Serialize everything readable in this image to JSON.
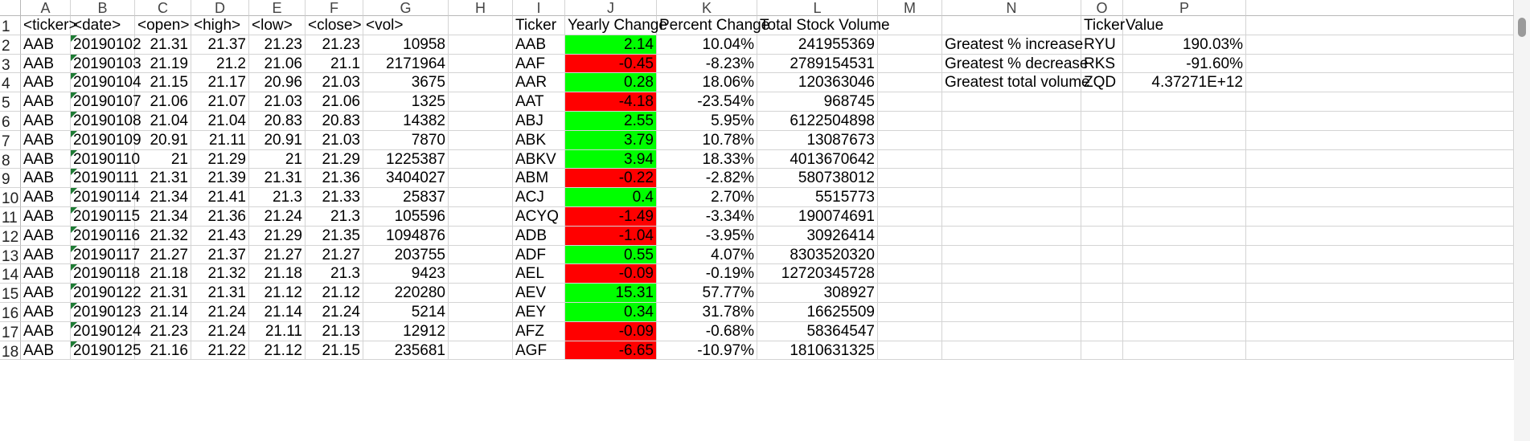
{
  "colors": {
    "positive": "#00ff00",
    "negative": "#ff0000",
    "error_indicator": "#1e7b34"
  },
  "column_headers": [
    "A",
    "B",
    "C",
    "D",
    "E",
    "F",
    "G",
    "H",
    "I",
    "J",
    "K",
    "L",
    "M",
    "N",
    "O",
    "P",
    ""
  ],
  "row_numbers": [
    "1",
    "2",
    "3",
    "4",
    "5",
    "6",
    "7",
    "8",
    "9",
    "10",
    "11",
    "12",
    "13",
    "14",
    "15",
    "16",
    "17",
    "18"
  ],
  "raw_headers": [
    "<ticker>",
    "<date>",
    "<open>",
    "<high>",
    "<low>",
    "<close>",
    "<vol>"
  ],
  "raw_rows": [
    [
      "AAB",
      "20190102",
      "21.31",
      "21.37",
      "21.23",
      "21.23",
      "10958"
    ],
    [
      "AAB",
      "20190103",
      "21.19",
      "21.2",
      "21.06",
      "21.1",
      "2171964"
    ],
    [
      "AAB",
      "20190104",
      "21.15",
      "21.17",
      "20.96",
      "21.03",
      "3675"
    ],
    [
      "AAB",
      "20190107",
      "21.06",
      "21.07",
      "21.03",
      "21.06",
      "1325"
    ],
    [
      "AAB",
      "20190108",
      "21.04",
      "21.04",
      "20.83",
      "20.83",
      "14382"
    ],
    [
      "AAB",
      "20190109",
      "20.91",
      "21.11",
      "20.91",
      "21.03",
      "7870"
    ],
    [
      "AAB",
      "20190110",
      "21",
      "21.29",
      "21",
      "21.29",
      "1225387"
    ],
    [
      "AAB",
      "20190111",
      "21.31",
      "21.39",
      "21.31",
      "21.36",
      "3404027"
    ],
    [
      "AAB",
      "20190114",
      "21.34",
      "21.41",
      "21.3",
      "21.33",
      "25837"
    ],
    [
      "AAB",
      "20190115",
      "21.34",
      "21.36",
      "21.24",
      "21.3",
      "105596"
    ],
    [
      "AAB",
      "20190116",
      "21.32",
      "21.43",
      "21.29",
      "21.35",
      "1094876"
    ],
    [
      "AAB",
      "20190117",
      "21.27",
      "21.37",
      "21.27",
      "21.27",
      "203755"
    ],
    [
      "AAB",
      "20190118",
      "21.18",
      "21.32",
      "21.18",
      "21.3",
      "9423"
    ],
    [
      "AAB",
      "20190122",
      "21.31",
      "21.31",
      "21.12",
      "21.12",
      "220280"
    ],
    [
      "AAB",
      "20190123",
      "21.14",
      "21.24",
      "21.14",
      "21.24",
      "5214"
    ],
    [
      "AAB",
      "20190124",
      "21.23",
      "21.24",
      "21.11",
      "21.13",
      "12912"
    ],
    [
      "AAB",
      "20190125",
      "21.16",
      "21.22",
      "21.12",
      "21.15",
      "235681"
    ]
  ],
  "summary_headers": [
    "Ticker",
    "Yearly Change",
    "Percent Change",
    "Total Stock Volume"
  ],
  "summary_rows": [
    [
      "AAB",
      "2.14",
      "10.04%",
      "241955369"
    ],
    [
      "AAF",
      "-0.45",
      "-8.23%",
      "2789154531"
    ],
    [
      "AAR",
      "0.28",
      "18.06%",
      "120363046"
    ],
    [
      "AAT",
      "-4.18",
      "-23.54%",
      "968745"
    ],
    [
      "ABJ",
      "2.55",
      "5.95%",
      "6122504898"
    ],
    [
      "ABK",
      "3.79",
      "10.78%",
      "13087673"
    ],
    [
      "ABKV",
      "3.94",
      "18.33%",
      "4013670642"
    ],
    [
      "ABM",
      "-0.22",
      "-2.82%",
      "580738012"
    ],
    [
      "ACJ",
      "0.4",
      "2.70%",
      "5515773"
    ],
    [
      "ACYQ",
      "-1.49",
      "-3.34%",
      "190074691"
    ],
    [
      "ADB",
      "-1.04",
      "-3.95%",
      "30926414"
    ],
    [
      "ADF",
      "0.55",
      "4.07%",
      "8303520320"
    ],
    [
      "AEL",
      "-0.09",
      "-0.19%",
      "12720345728"
    ],
    [
      "AEV",
      "15.31",
      "57.77%",
      "308927"
    ],
    [
      "AEY",
      "0.34",
      "31.78%",
      "16625509"
    ],
    [
      "AFZ",
      "-0.09",
      "-0.68%",
      "58364547"
    ],
    [
      "AGF",
      "-6.65",
      "-10.97%",
      "1810631325"
    ]
  ],
  "greatest_headers": [
    "Ticker",
    "Value"
  ],
  "greatest_rows": [
    [
      "Greatest % increase",
      "RYU",
      "190.03%"
    ],
    [
      "Greatest % decrease",
      "RKS",
      "-91.60%"
    ],
    [
      "Greatest total volume",
      "ZQD",
      "4.37271E+12"
    ]
  ]
}
